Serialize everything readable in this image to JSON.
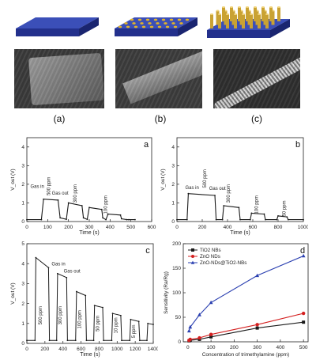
{
  "schematic_panels": [
    {
      "label": "(a)",
      "kind": "plain-belt"
    },
    {
      "label": "(b)",
      "kind": "dotted-belt"
    },
    {
      "label": "(c)",
      "kind": "rod-belt"
    }
  ],
  "colors": {
    "belt_top": "#2f3f9e",
    "belt_side": "#1f2a78",
    "dots": "#e2b32a",
    "rods": "#c9a233",
    "series_black": "#1a1a1a",
    "series_red": "#d42020",
    "series_blue": "#2a3fb0"
  },
  "chart_data": [
    {
      "type": "line",
      "panel": "a",
      "xlabel": "Time (s)",
      "ylabel": "V_out (V)",
      "xlim": [
        0,
        600
      ],
      "ylim": [
        0,
        4.5
      ],
      "xticks": [
        0,
        100,
        200,
        300,
        400,
        500,
        600
      ],
      "yticks": [
        0,
        1,
        2,
        3,
        4
      ],
      "series": [
        {
          "x": [
            0,
            70,
            80,
            150,
            160,
            190,
            200,
            265,
            272,
            290,
            300,
            360,
            365,
            380,
            390,
            450,
            455,
            480,
            490,
            520
          ],
          "y": [
            0.1,
            0.1,
            1.2,
            1.15,
            0.2,
            0.12,
            1.0,
            0.85,
            0.2,
            0.12,
            0.75,
            0.65,
            0.2,
            0.1,
            0.4,
            0.35,
            0.15,
            0.1,
            0.1,
            0.1
          ]
        }
      ],
      "annotations": [
        {
          "text": "Gas in",
          "x": 50,
          "y": 1.8
        },
        {
          "text": "500 ppm",
          "x": 112,
          "y": 1.9,
          "rotate": true
        },
        {
          "text": "Gas out",
          "x": 160,
          "y": 1.45
        },
        {
          "text": "300 ppm",
          "x": 240,
          "y": 1.5,
          "rotate": true
        },
        {
          "text": "100 ppm",
          "x": 385,
          "y": 0.9,
          "rotate": true
        }
      ]
    },
    {
      "type": "line",
      "panel": "b",
      "xlabel": "Time (s)",
      "ylabel": "V_out (V)",
      "xlim": [
        0,
        1000
      ],
      "ylim": [
        0,
        4.5
      ],
      "xticks": [
        0,
        200,
        400,
        600,
        800,
        1000
      ],
      "yticks": [
        0,
        1,
        2,
        3,
        4
      ],
      "series": [
        {
          "x": [
            0,
            80,
            90,
            300,
            310,
            360,
            370,
            490,
            500,
            580,
            590,
            690,
            700,
            790,
            800,
            870,
            880,
            1000
          ],
          "y": [
            0.1,
            0.1,
            1.5,
            1.4,
            0.1,
            0.1,
            0.85,
            0.75,
            0.1,
            0.1,
            0.45,
            0.4,
            0.1,
            0.1,
            0.3,
            0.25,
            0.1,
            0.1
          ]
        }
      ],
      "annotations": [
        {
          "text": "Gas in",
          "x": 120,
          "y": 1.75
        },
        {
          "text": "500 ppm",
          "x": 230,
          "y": 2.3,
          "rotate": true
        },
        {
          "text": "Gas out",
          "x": 320,
          "y": 1.7
        },
        {
          "text": "300 ppm",
          "x": 420,
          "y": 1.5,
          "rotate": true
        },
        {
          "text": "100 ppm",
          "x": 640,
          "y": 0.9,
          "rotate": true
        },
        {
          "text": "50 ppm",
          "x": 860,
          "y": 0.7,
          "rotate": true
        }
      ]
    },
    {
      "type": "line",
      "panel": "c",
      "xlabel": "Time (s)",
      "ylabel": "V_out (V)",
      "xlim": [
        0,
        1400
      ],
      "ylim": [
        0,
        5
      ],
      "xticks": [
        0,
        200,
        400,
        600,
        800,
        1000,
        1200,
        1400
      ],
      "yticks": [
        0,
        1,
        2,
        3,
        4,
        5
      ],
      "series": [
        {
          "x": [
            0,
            90,
            100,
            240,
            250,
            330,
            340,
            440,
            450,
            540,
            550,
            650,
            660,
            740,
            750,
            840,
            850,
            940,
            950,
            1040,
            1050,
            1140,
            1150,
            1240,
            1250,
            1330,
            1340,
            1400
          ],
          "y": [
            0.15,
            0.15,
            4.3,
            3.8,
            0.15,
            0.15,
            3.5,
            3.3,
            0.15,
            0.15,
            2.6,
            2.4,
            0.15,
            0.15,
            1.9,
            1.8,
            0.15,
            0.15,
            1.5,
            1.4,
            0.15,
            0.15,
            1.2,
            1.1,
            0.15,
            0.15,
            1.0,
            0.95
          ]
        }
      ],
      "annotations": [
        {
          "text": "Gas in",
          "x": 350,
          "y": 3.9
        },
        {
          "text": "Gas out",
          "x": 500,
          "y": 3.55
        },
        {
          "text": "500 ppm",
          "x": 165,
          "y": 1.4,
          "rotate": true
        },
        {
          "text": "300 ppm",
          "x": 385,
          "y": 1.4,
          "rotate": true
        },
        {
          "text": "100 ppm",
          "x": 600,
          "y": 1.2,
          "rotate": true
        },
        {
          "text": "50 ppm",
          "x": 800,
          "y": 1.0,
          "rotate": true
        },
        {
          "text": "10 ppm",
          "x": 1000,
          "y": 0.9,
          "rotate": true
        },
        {
          "text": "5 ppm",
          "x": 1200,
          "y": 0.6,
          "rotate": true
        }
      ]
    },
    {
      "type": "line",
      "panel": "d",
      "xlabel": "Concentration of trimethylamine (ppm)",
      "ylabel": "Sensitivity (Ra/Rg)",
      "xlim": [
        -20,
        520
      ],
      "ylim": [
        0,
        200
      ],
      "xticks": [
        0,
        100,
        200,
        300,
        400,
        500
      ],
      "yticks": [
        0,
        50,
        100,
        150,
        200
      ],
      "legend": "top-left",
      "series": [
        {
          "name": "TiO2 NBs",
          "x": [
            5,
            10,
            50,
            100,
            300,
            500
          ],
          "y": [
            2,
            3,
            5,
            10,
            28,
            40
          ],
          "color": "series_black",
          "marker": "square"
        },
        {
          "name": "ZnO NDs",
          "x": [
            5,
            10,
            50,
            100,
            300,
            500
          ],
          "y": [
            3,
            5,
            8,
            15,
            35,
            58
          ],
          "color": "series_red",
          "marker": "circle"
        },
        {
          "name": "ZnO-NDs@TiO2-NBs",
          "x": [
            5,
            10,
            50,
            100,
            300,
            500
          ],
          "y": [
            22,
            30,
            55,
            80,
            135,
            175
          ],
          "color": "series_blue",
          "marker": "triangle"
        }
      ]
    }
  ]
}
